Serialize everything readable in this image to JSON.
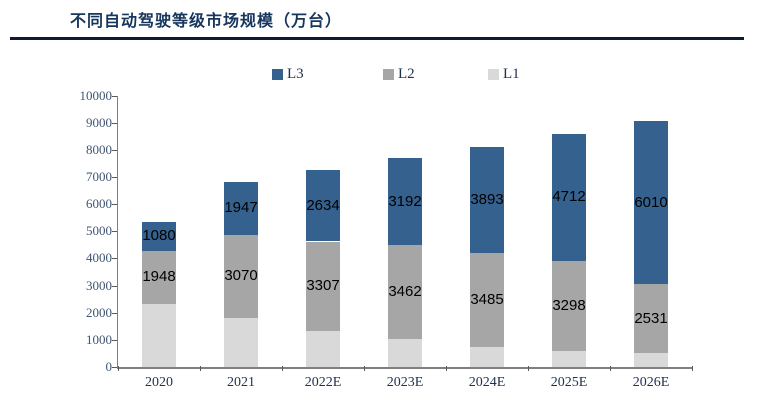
{
  "title": "不同自动驾驶等级市场规模（万台）",
  "colors": {
    "title": "#17365D",
    "rule": "#0D1B33",
    "l3": "#35618F",
    "l2": "#A6A6A6",
    "l1": "#D9D9D9",
    "axis_line": "#808080",
    "tick": "#595959",
    "y_label": "#3F5573",
    "x_label": "#1F3050",
    "data_label": "#000000",
    "legend_text": "#1F3050"
  },
  "legend": {
    "items": [
      {
        "label": "L3",
        "color_key": "l3"
      },
      {
        "label": "L2",
        "color_key": "l2"
      },
      {
        "label": "L1",
        "color_key": "l1"
      }
    ]
  },
  "chart_data": {
    "type": "bar",
    "stacked": true,
    "title": "不同自动驾驶等级市场规模（万台）",
    "categories": [
      "2020",
      "2021",
      "2022E",
      "2023E",
      "2024E",
      "2025E",
      "2026E"
    ],
    "series": [
      {
        "name": "L1",
        "color_key": "l1",
        "show_labels": false,
        "values": [
          2325,
          1805,
          1315,
          1030,
          730,
          590,
          515
        ],
        "note": "segments visible but unlabeled in chart; values estimated from gridlines"
      },
      {
        "name": "L2",
        "color_key": "l2",
        "show_labels": true,
        "values": [
          1948,
          3070,
          3307,
          3462,
          3485,
          3298,
          2531
        ]
      },
      {
        "name": "L3",
        "color_key": "l3",
        "show_labels": true,
        "values": [
          1080,
          1947,
          2634,
          3192,
          3893,
          4712,
          6010
        ]
      }
    ],
    "ylim": [
      0,
      10000
    ],
    "ytick_step": 1000,
    "ytick_labels": [
      "0",
      "1000",
      "2000",
      "3000",
      "4000",
      "5000",
      "6000",
      "7000",
      "8000",
      "9000",
      "10000"
    ],
    "grid": false,
    "legend_position": "top"
  }
}
